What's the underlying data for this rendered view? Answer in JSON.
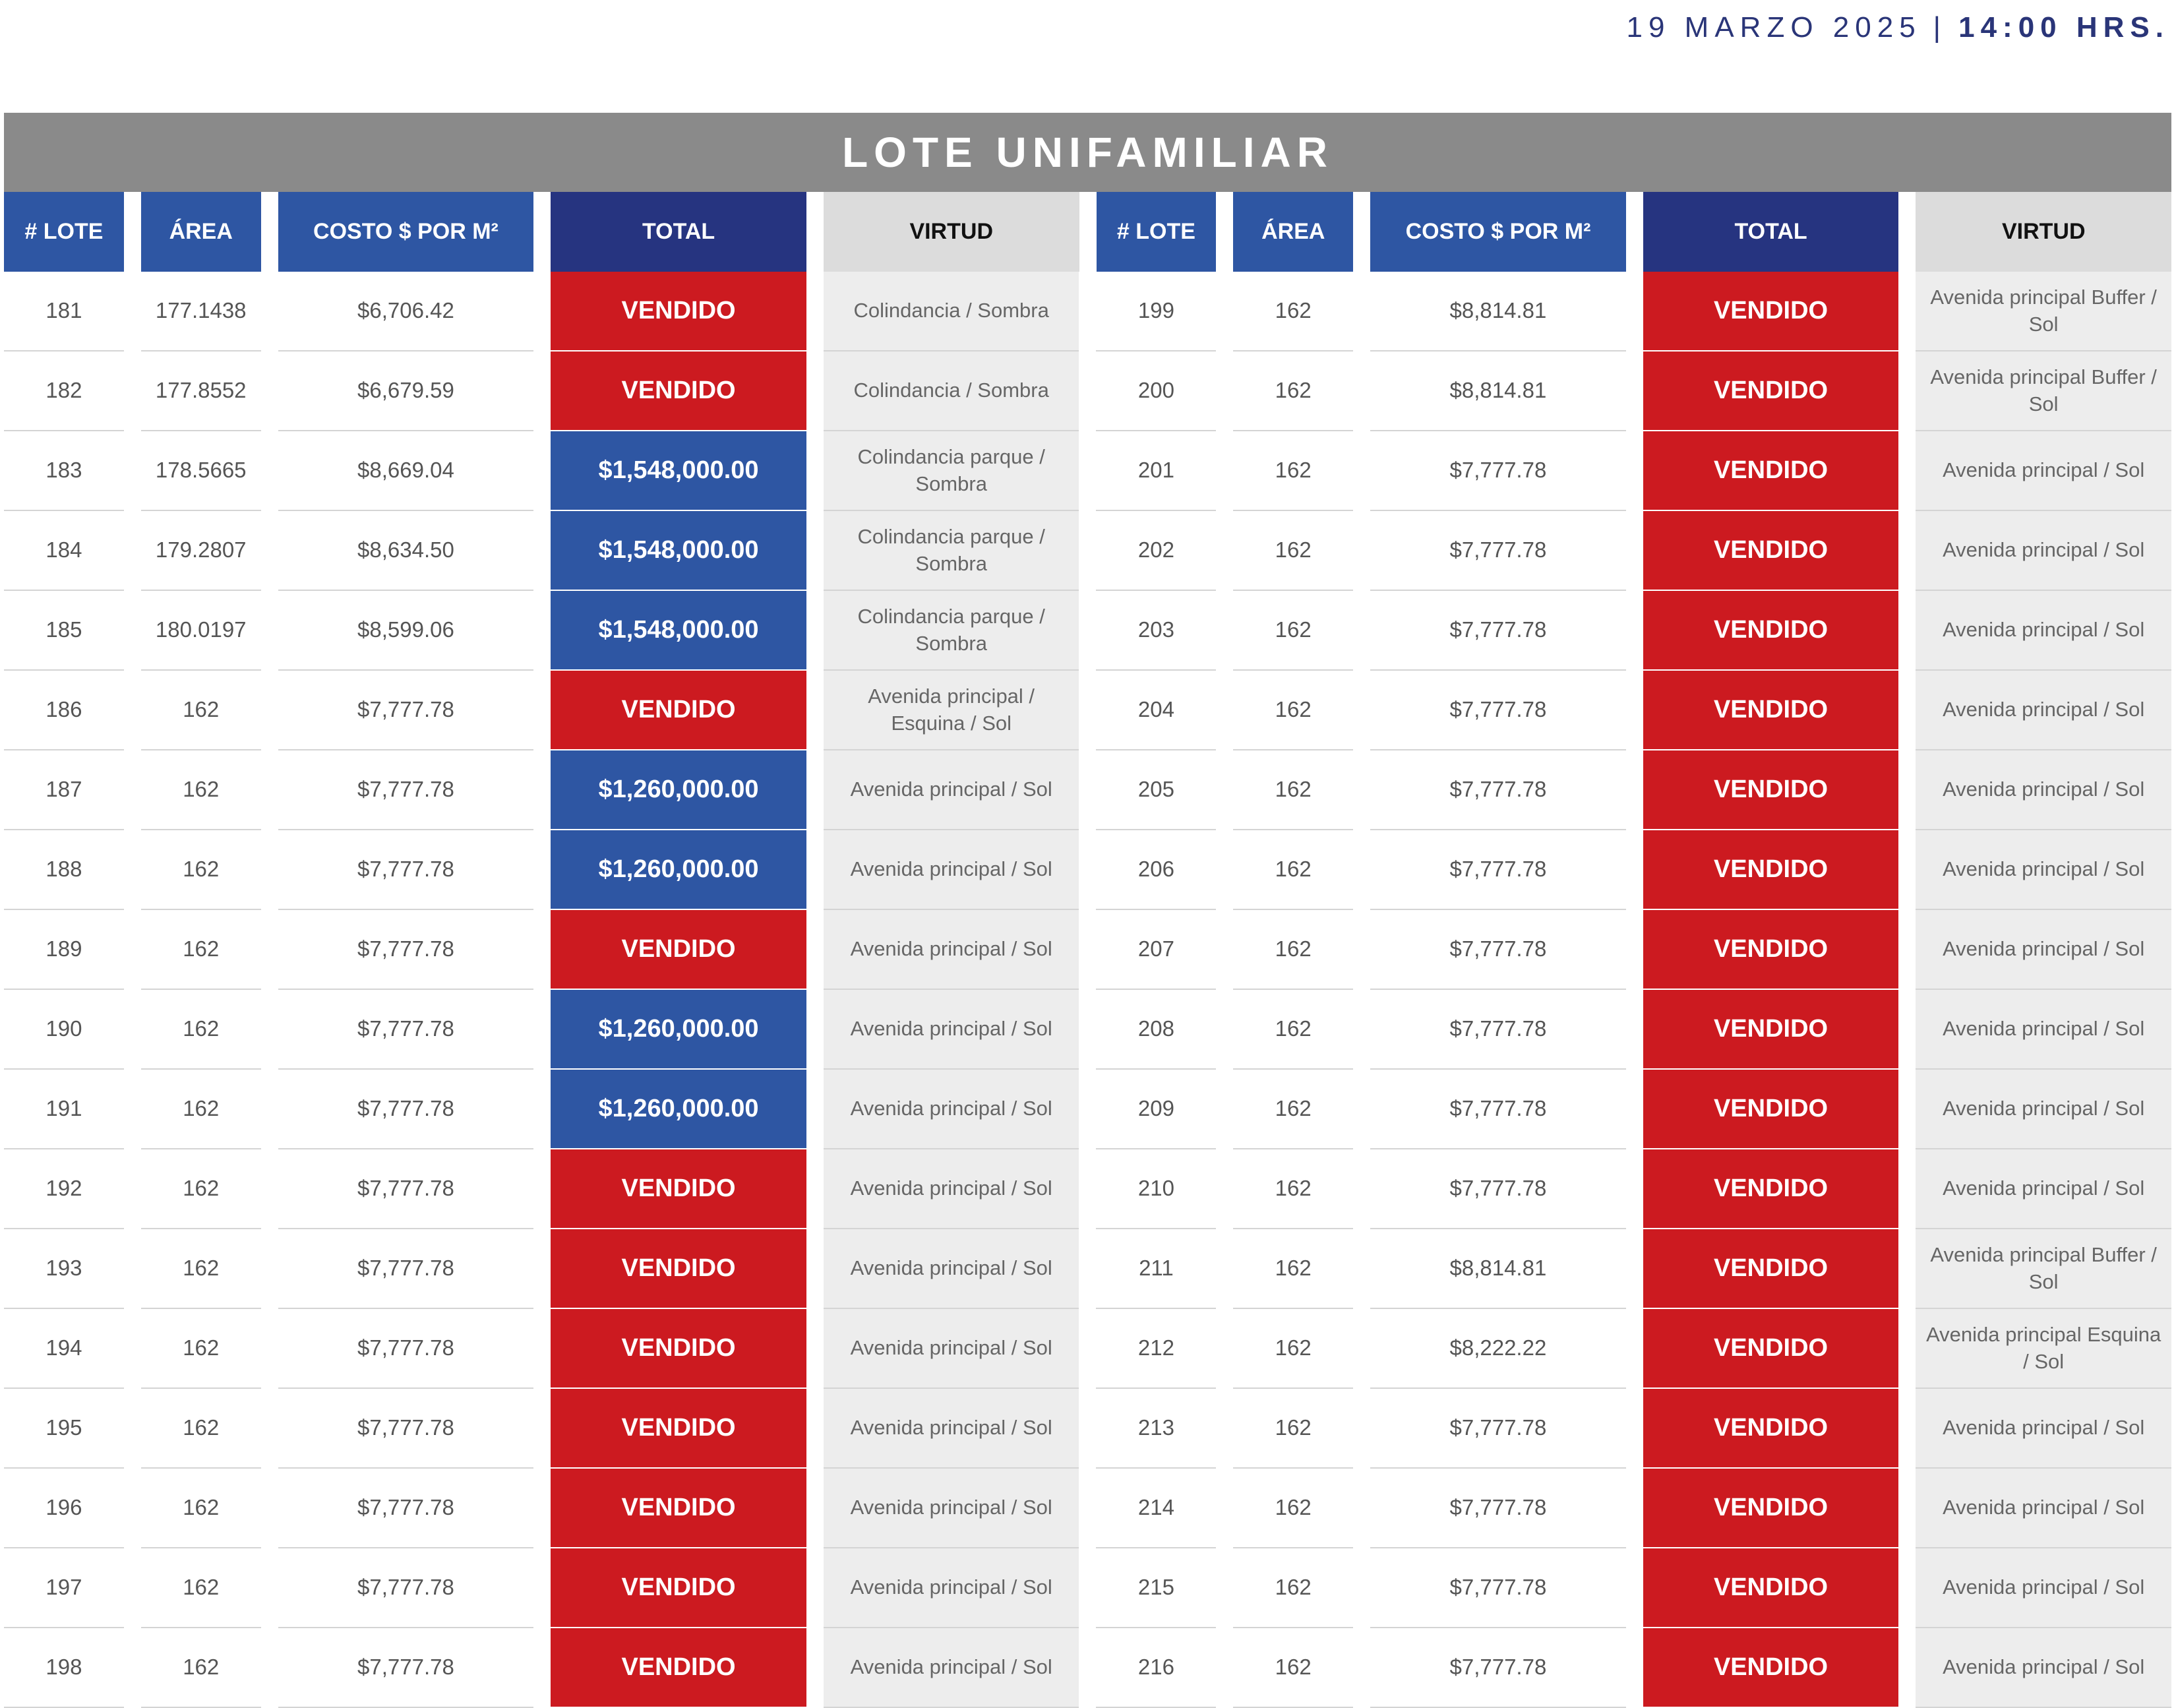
{
  "header": {
    "date": "19 MARZO 2025",
    "separator": "|",
    "time": "14:00 HRS."
  },
  "title": "LOTE UNIFAMILIAR",
  "columns": [
    "# LOTE",
    "ÁREA",
    "COSTO $ POR M²",
    "TOTAL",
    "VIRTUD"
  ],
  "colors": {
    "sold": "#cc1a20",
    "price": "#2e56a3",
    "header_blue": "#2e56a3",
    "header_navy": "#263480",
    "banner": "#8a8a8a"
  },
  "left": [
    {
      "lote": "181",
      "area": "177.1438",
      "costo": "$6,706.42",
      "total": "VENDIDO",
      "sold": true,
      "virtud": "Colindancia / Sombra"
    },
    {
      "lote": "182",
      "area": "177.8552",
      "costo": "$6,679.59",
      "total": "VENDIDO",
      "sold": true,
      "virtud": "Colindancia / Sombra"
    },
    {
      "lote": "183",
      "area": "178.5665",
      "costo": "$8,669.04",
      "total": "$1,548,000.00",
      "sold": false,
      "virtud": "Colindancia parque / Sombra"
    },
    {
      "lote": "184",
      "area": "179.2807",
      "costo": "$8,634.50",
      "total": "$1,548,000.00",
      "sold": false,
      "virtud": "Colindancia parque / Sombra"
    },
    {
      "lote": "185",
      "area": "180.0197",
      "costo": "$8,599.06",
      "total": "$1,548,000.00",
      "sold": false,
      "virtud": "Colindancia parque / Sombra"
    },
    {
      "lote": "186",
      "area": "162",
      "costo": "$7,777.78",
      "total": "VENDIDO",
      "sold": true,
      "virtud": "Avenida principal / Esquina / Sol"
    },
    {
      "lote": "187",
      "area": "162",
      "costo": "$7,777.78",
      "total": "$1,260,000.00",
      "sold": false,
      "virtud": "Avenida principal / Sol"
    },
    {
      "lote": "188",
      "area": "162",
      "costo": "$7,777.78",
      "total": "$1,260,000.00",
      "sold": false,
      "virtud": "Avenida principal / Sol"
    },
    {
      "lote": "189",
      "area": "162",
      "costo": "$7,777.78",
      "total": "VENDIDO",
      "sold": true,
      "virtud": "Avenida principal / Sol"
    },
    {
      "lote": "190",
      "area": "162",
      "costo": "$7,777.78",
      "total": "$1,260,000.00",
      "sold": false,
      "virtud": "Avenida principal / Sol"
    },
    {
      "lote": "191",
      "area": "162",
      "costo": "$7,777.78",
      "total": "$1,260,000.00",
      "sold": false,
      "virtud": "Avenida principal / Sol"
    },
    {
      "lote": "192",
      "area": "162",
      "costo": "$7,777.78",
      "total": "VENDIDO",
      "sold": true,
      "virtud": "Avenida principal / Sol"
    },
    {
      "lote": "193",
      "area": "162",
      "costo": "$7,777.78",
      "total": "VENDIDO",
      "sold": true,
      "virtud": "Avenida principal / Sol"
    },
    {
      "lote": "194",
      "area": "162",
      "costo": "$7,777.78",
      "total": "VENDIDO",
      "sold": true,
      "virtud": "Avenida principal / Sol"
    },
    {
      "lote": "195",
      "area": "162",
      "costo": "$7,777.78",
      "total": "VENDIDO",
      "sold": true,
      "virtud": "Avenida principal / Sol"
    },
    {
      "lote": "196",
      "area": "162",
      "costo": "$7,777.78",
      "total": "VENDIDO",
      "sold": true,
      "virtud": "Avenida principal / Sol"
    },
    {
      "lote": "197",
      "area": "162",
      "costo": "$7,777.78",
      "total": "VENDIDO",
      "sold": true,
      "virtud": "Avenida principal / Sol"
    },
    {
      "lote": "198",
      "area": "162",
      "costo": "$7,777.78",
      "total": "VENDIDO",
      "sold": true,
      "virtud": "Avenida principal / Sol"
    }
  ],
  "right": [
    {
      "lote": "199",
      "area": "162",
      "costo": "$8,814.81",
      "total": "VENDIDO",
      "sold": true,
      "virtud": "Avenida principal Buffer / Sol"
    },
    {
      "lote": "200",
      "area": "162",
      "costo": "$8,814.81",
      "total": "VENDIDO",
      "sold": true,
      "virtud": "Avenida principal Buffer / Sol"
    },
    {
      "lote": "201",
      "area": "162",
      "costo": "$7,777.78",
      "total": "VENDIDO",
      "sold": true,
      "virtud": "Avenida principal / Sol"
    },
    {
      "lote": "202",
      "area": "162",
      "costo": "$7,777.78",
      "total": "VENDIDO",
      "sold": true,
      "virtud": "Avenida principal / Sol"
    },
    {
      "lote": "203",
      "area": "162",
      "costo": "$7,777.78",
      "total": "VENDIDO",
      "sold": true,
      "virtud": "Avenida principal / Sol"
    },
    {
      "lote": "204",
      "area": "162",
      "costo": "$7,777.78",
      "total": "VENDIDO",
      "sold": true,
      "virtud": "Avenida principal / Sol"
    },
    {
      "lote": "205",
      "area": "162",
      "costo": "$7,777.78",
      "total": "VENDIDO",
      "sold": true,
      "virtud": "Avenida principal / Sol"
    },
    {
      "lote": "206",
      "area": "162",
      "costo": "$7,777.78",
      "total": "VENDIDO",
      "sold": true,
      "virtud": "Avenida principal / Sol"
    },
    {
      "lote": "207",
      "area": "162",
      "costo": "$7,777.78",
      "total": "VENDIDO",
      "sold": true,
      "virtud": "Avenida principal / Sol"
    },
    {
      "lote": "208",
      "area": "162",
      "costo": "$7,777.78",
      "total": "VENDIDO",
      "sold": true,
      "virtud": "Avenida principal / Sol"
    },
    {
      "lote": "209",
      "area": "162",
      "costo": "$7,777.78",
      "total": "VENDIDO",
      "sold": true,
      "virtud": "Avenida principal / Sol"
    },
    {
      "lote": "210",
      "area": "162",
      "costo": "$7,777.78",
      "total": "VENDIDO",
      "sold": true,
      "virtud": "Avenida principal / Sol"
    },
    {
      "lote": "211",
      "area": "162",
      "costo": "$8,814.81",
      "total": "VENDIDO",
      "sold": true,
      "virtud": "Avenida principal Buffer / Sol"
    },
    {
      "lote": "212",
      "area": "162",
      "costo": "$8,222.22",
      "total": "VENDIDO",
      "sold": true,
      "virtud": "Avenida principal Esquina / Sol"
    },
    {
      "lote": "213",
      "area": "162",
      "costo": "$7,777.78",
      "total": "VENDIDO",
      "sold": true,
      "virtud": "Avenida principal / Sol"
    },
    {
      "lote": "214",
      "area": "162",
      "costo": "$7,777.78",
      "total": "VENDIDO",
      "sold": true,
      "virtud": "Avenida principal / Sol"
    },
    {
      "lote": "215",
      "area": "162",
      "costo": "$7,777.78",
      "total": "VENDIDO",
      "sold": true,
      "virtud": "Avenida principal / Sol"
    },
    {
      "lote": "216",
      "area": "162",
      "costo": "$7,777.78",
      "total": "VENDIDO",
      "sold": true,
      "virtud": "Avenida principal / Sol"
    }
  ]
}
